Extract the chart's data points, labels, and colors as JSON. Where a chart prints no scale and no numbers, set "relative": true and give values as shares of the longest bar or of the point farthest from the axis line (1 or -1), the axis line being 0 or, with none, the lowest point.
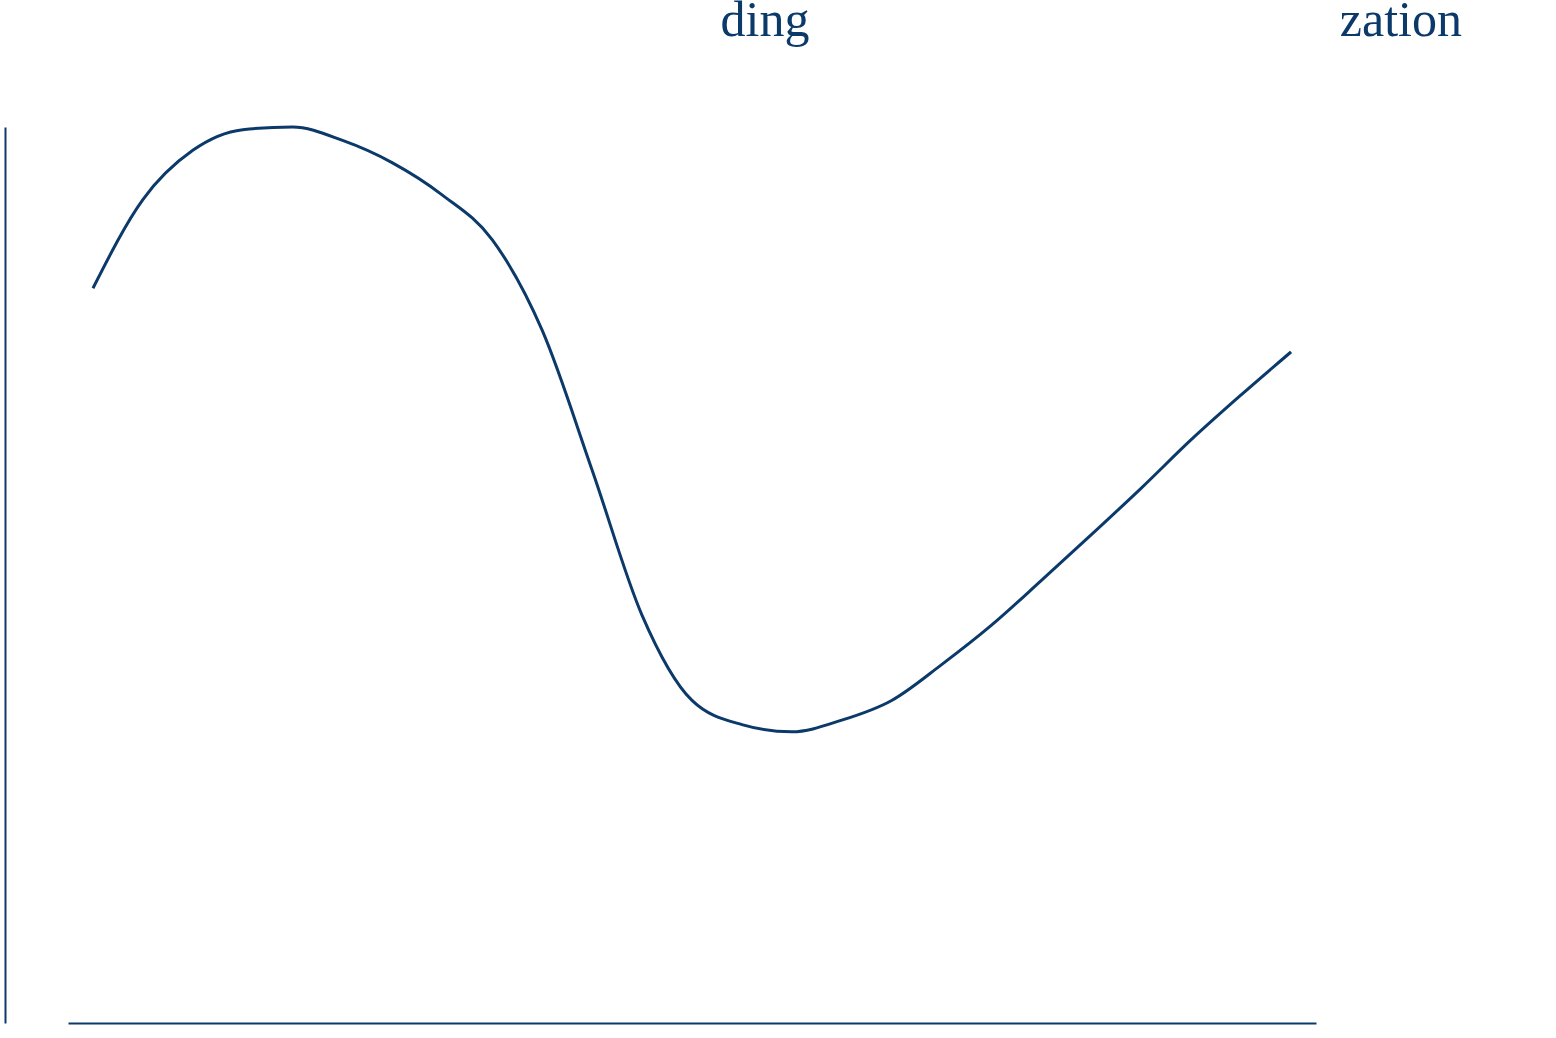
{
  "chart_data": {
    "type": "line",
    "relative": true,
    "color": "#0b3a6a",
    "annotations": [
      "ding",
      "zation"
    ],
    "categories": [
      null,
      null,
      null,
      null,
      null,
      null,
      null,
      null,
      null,
      null,
      null,
      null,
      null,
      null,
      null,
      null,
      null,
      null,
      null,
      null,
      null,
      null,
      null,
      null,
      null
    ],
    "values": [
      0.82,
      0.919,
      0.974,
      0.997,
      1.0,
      0.985,
      0.96,
      0.924,
      0.874,
      0.773,
      0.617,
      0.455,
      0.36,
      0.333,
      0.325,
      0.338,
      0.36,
      0.4,
      0.444,
      0.494,
      0.545,
      0.597,
      0.651,
      0.701,
      0.749
    ],
    "grid": false,
    "marker": "none",
    "line_style": "solid"
  }
}
